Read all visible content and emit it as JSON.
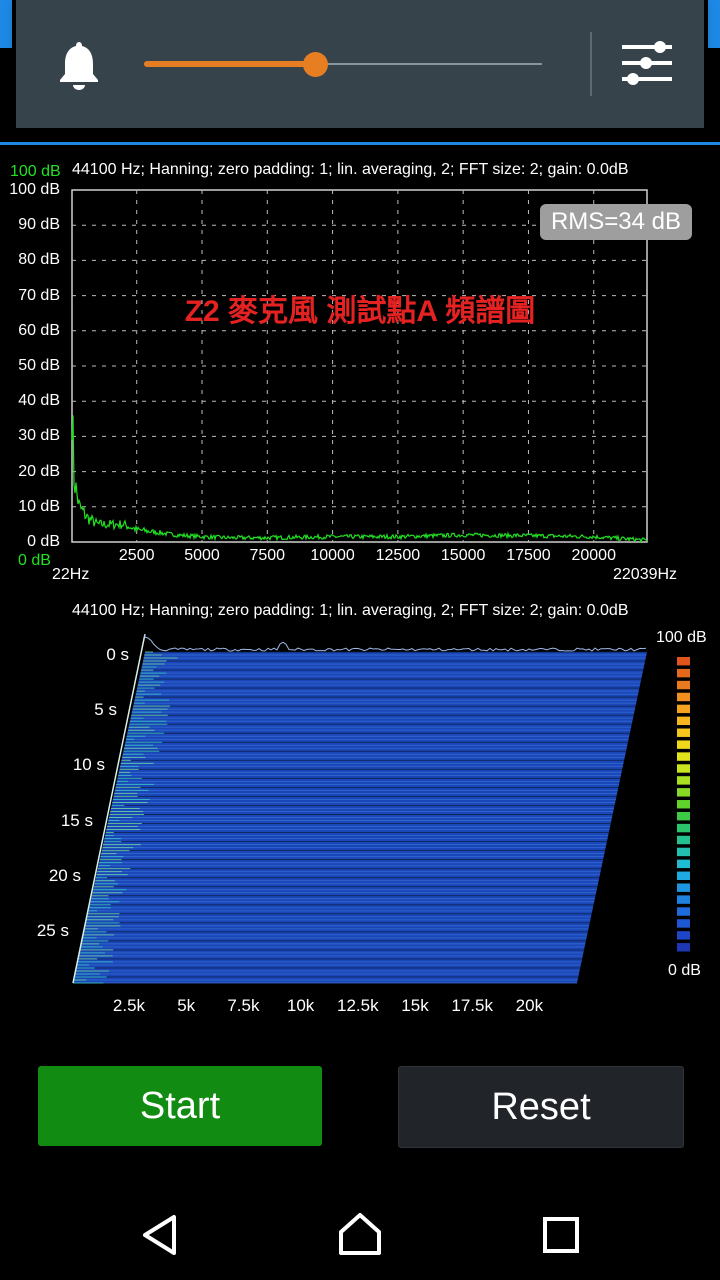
{
  "toolbar": {
    "icons": [
      "bell-icon",
      "equalizer-settings-icon"
    ],
    "volume_fraction": 0.43,
    "accent_color": "#e87e22"
  },
  "spectrum": {
    "header": "44100 Hz; Hanning; zero padding: 1; lin. averaging, 2; FFT size: 2; gain: 0.0dB",
    "ymax_label": "100 dB",
    "ymin_label": "0 dB",
    "rms_label": "RMS=34 dB",
    "annotation": "Z2 麥克風 測試點A 頻譜圖",
    "x_start_label": "22Hz",
    "x_end_label": "22039Hz",
    "trace_color": "#22e022"
  },
  "spectrogram": {
    "header": "44100 Hz; Hanning; zero padding: 1; lin. averaging, 2; FFT size: 2; gain: 0.0dB",
    "scale_top": "100 dB",
    "scale_bottom": "0 dB",
    "time_labels": [
      "0 s",
      "5 s",
      "10 s",
      "15 s",
      "20 s",
      "25 s"
    ],
    "freq_labels": [
      "2.5k",
      "5k",
      "7.5k",
      "10k",
      "12.5k",
      "15k",
      "17.5k",
      "20k"
    ],
    "fill_color": "#1a47b8"
  },
  "buttons": {
    "start_label": "Start",
    "reset_label": "Reset"
  },
  "navbar": {
    "icons": [
      "back-icon",
      "home-icon",
      "recents-icon"
    ]
  },
  "chart_data": {
    "type": "line",
    "xlabel": "",
    "ylabel": "",
    "xlim": [
      22,
      22039
    ],
    "ylim": [
      0,
      100
    ],
    "y_ticks": [
      "0 dB",
      "10 dB",
      "20 dB",
      "30 dB",
      "40 dB",
      "50 dB",
      "60 dB",
      "70 dB",
      "80 dB",
      "90 dB",
      "100 dB"
    ],
    "x_ticks": [
      "2500",
      "5000",
      "7500",
      "10000",
      "12500",
      "15000",
      "17500",
      "20000"
    ],
    "grid": true,
    "series": [
      {
        "x": [
          22,
          100,
          300,
          600,
          1000,
          1500,
          2000,
          2500,
          3000,
          4000,
          5000,
          6000,
          7500,
          10000,
          12500,
          15000,
          17500,
          20000,
          21000,
          22039
        ],
        "y": [
          40,
          18,
          10,
          7,
          5,
          5,
          5,
          3.5,
          3,
          2,
          1.5,
          1.2,
          1.2,
          1.5,
          1.5,
          2,
          1.8,
          1.5,
          1,
          0.5
        ]
      }
    ]
  }
}
